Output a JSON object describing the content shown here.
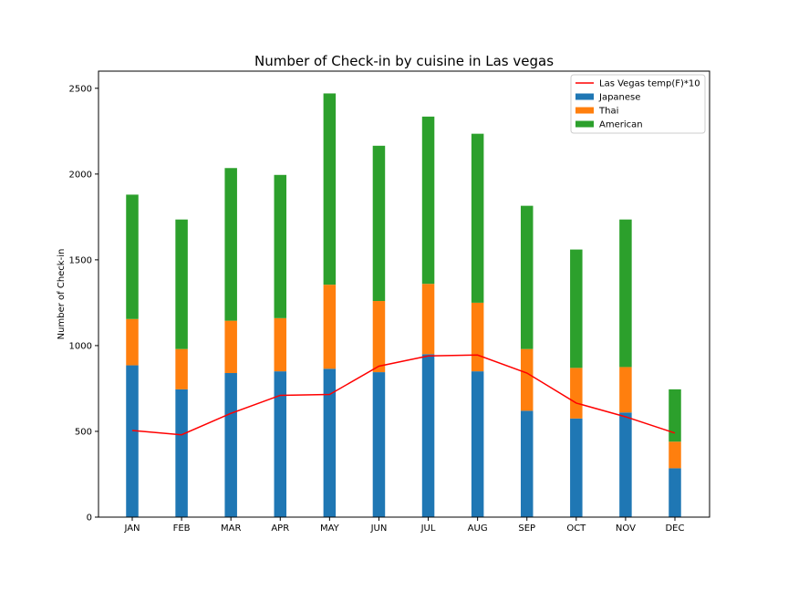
{
  "chart_data": {
    "type": "bar",
    "stacked": true,
    "title": "Number of Check-in by cuisine in Las vegas",
    "xlabel": "",
    "ylabel": "Number of Check-in",
    "categories": [
      "JAN",
      "FEB",
      "MAR",
      "APR",
      "MAY",
      "JUN",
      "JUL",
      "AUG",
      "SEP",
      "OCT",
      "NOV",
      "DEC"
    ],
    "ylim": [
      0,
      2600
    ],
    "yticks": [
      0,
      500,
      1000,
      1500,
      2000,
      2500
    ],
    "series": [
      {
        "name": "Japanese",
        "color": "#1f77b4",
        "values": [
          885,
          745,
          840,
          850,
          865,
          845,
          950,
          850,
          620,
          575,
          610,
          285
        ]
      },
      {
        "name": "Thai",
        "color": "#ff7f0e",
        "values": [
          270,
          235,
          305,
          310,
          490,
          415,
          410,
          400,
          360,
          295,
          265,
          155
        ]
      },
      {
        "name": "American",
        "color": "#2ca02c",
        "values": [
          725,
          755,
          890,
          835,
          1115,
          905,
          975,
          985,
          835,
          690,
          860,
          305
        ]
      }
    ],
    "line": {
      "name": "Las Vegas temp(F)*10",
      "color": "#ff0000",
      "values": [
        505,
        480,
        605,
        710,
        715,
        880,
        940,
        945,
        840,
        665,
        585,
        490
      ]
    },
    "legend_position": "top-right",
    "grid": false
  }
}
